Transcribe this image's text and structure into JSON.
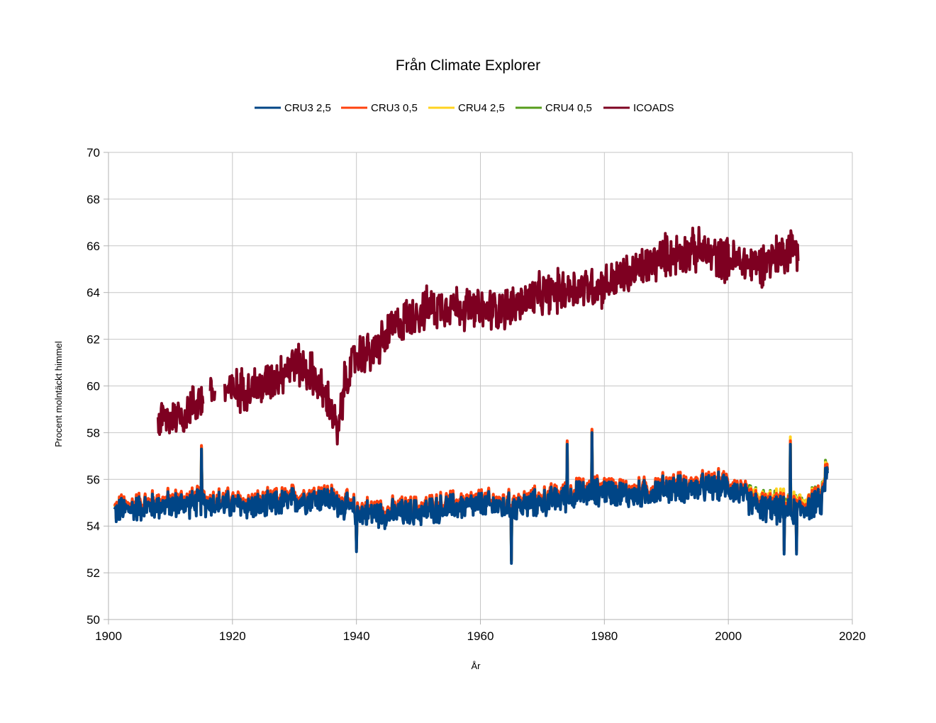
{
  "chart_data": {
    "type": "line",
    "title": "Från Climate Explorer",
    "xlabel": "År",
    "ylabel": "Procent molntäckt himmel",
    "xlim": [
      1900,
      2020
    ],
    "ylim": [
      50,
      70
    ],
    "x_ticks": [
      1900,
      1920,
      1940,
      1960,
      1980,
      2000,
      2020
    ],
    "y_ticks": [
      50,
      52,
      54,
      56,
      58,
      60,
      62,
      64,
      66,
      68,
      70
    ],
    "grid": true,
    "legend_position": "top",
    "series": [
      {
        "name": "CRU3 2,5",
        "color": "#004586",
        "x_range": [
          1901,
          2016
        ],
        "anchors_x": [
          1901,
          1905,
          1910,
          1915,
          1920,
          1925,
          1930,
          1935,
          1940,
          1945,
          1950,
          1955,
          1960,
          1965,
          1970,
          1975,
          1980,
          1985,
          1990,
          1995,
          2000,
          2005,
          2010,
          2015,
          2016
        ],
        "anchors_y": [
          54.6,
          54.8,
          54.9,
          55.0,
          54.9,
          54.8,
          55.1,
          55.2,
          54.6,
          54.5,
          54.6,
          54.8,
          54.9,
          54.8,
          55.0,
          55.3,
          55.5,
          55.3,
          55.6,
          55.6,
          55.7,
          54.8,
          54.6,
          55.0,
          56.6
        ],
        "spread": 0.7,
        "peaks": [
          [
            1915,
            57.3
          ],
          [
            1965,
            52.4
          ],
          [
            1978,
            58.0
          ],
          [
            1974,
            57.5
          ],
          [
            2010,
            57.5
          ],
          [
            1940,
            52.9
          ],
          [
            2009,
            52.8
          ],
          [
            2011,
            52.8
          ]
        ]
      },
      {
        "name": "CRU3 0,5",
        "color": "#ff420e",
        "x_range": [
          1901,
          2016
        ],
        "offset_from": "CRU3 2,5",
        "offset": 0.15
      },
      {
        "name": "CRU4 2,5",
        "color": "#ffd320",
        "x_range": [
          1901,
          2016
        ],
        "offset_from": "CRU3 2,5",
        "offset": 0.1
      },
      {
        "name": "CRU4 0,5",
        "color": "#579d1c",
        "x_range": [
          1901,
          2016
        ],
        "offset_from": "CRU3 2,5",
        "offset": 0.12
      },
      {
        "name": "ICOADS",
        "color": "#7e0021",
        "x_range": [
          1908,
          2011.3
        ],
        "gaps": [
          [
            1915.3,
            1916.4
          ],
          [
            1917.2,
            1918.7
          ]
        ],
        "anchors_x": [
          1908,
          1912,
          1915,
          1918,
          1920,
          1925,
          1930,
          1933,
          1936,
          1937,
          1938,
          1940,
          1943,
          1946,
          1950,
          1955,
          1960,
          1965,
          1970,
          1975,
          1980,
          1985,
          1990,
          1995,
          2000,
          2005,
          2010,
          2011.3
        ],
        "anchors_y": [
          58.5,
          58.8,
          59.5,
          59.8,
          59.8,
          60.0,
          61.0,
          60.5,
          59.0,
          57.8,
          60.0,
          61.3,
          61.5,
          62.5,
          63.2,
          63.5,
          63.2,
          63.4,
          63.9,
          64.2,
          64.3,
          64.9,
          65.6,
          65.8,
          65.4,
          65.2,
          65.9,
          66.0
        ],
        "spread": 1.1
      }
    ]
  }
}
